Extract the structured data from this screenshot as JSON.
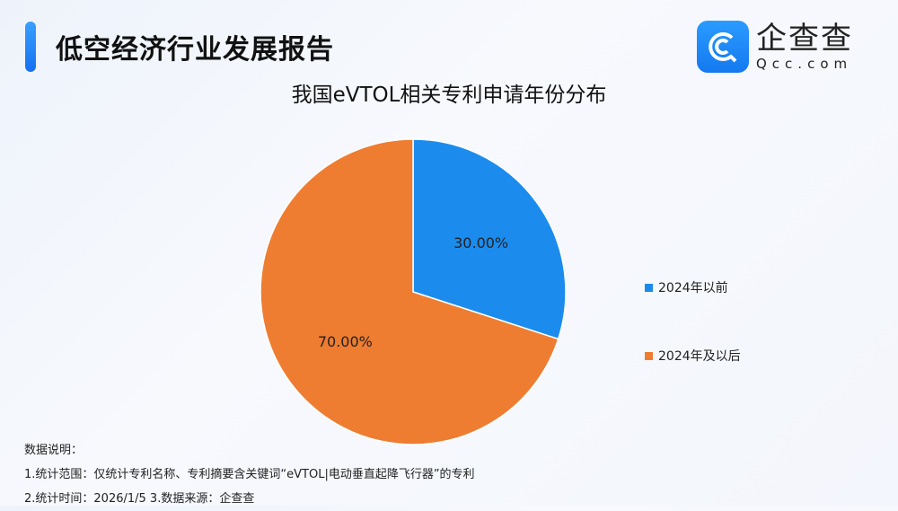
{
  "header": {
    "title": "低空经济行业发展报告",
    "logo_cn": "企查查",
    "logo_en": "Qcc.com"
  },
  "chart_data": {
    "type": "pie",
    "title": "我国eVTOL相关专利申请年份分布",
    "slices": [
      {
        "label": "2024年以前",
        "value": 30.0,
        "display": "30.00%",
        "color": "#1b8cee"
      },
      {
        "label": "2024年及以后",
        "value": 70.0,
        "display": "70.00%",
        "color": "#ee7d31"
      }
    ],
    "start": "top",
    "direction": "clockwise",
    "legend": "right"
  },
  "notes": {
    "heading": "数据说明：",
    "line1": "1.统计范围：仅统计专利名称、专利摘要含关键词“eVTOL|电动垂直起降飞行器”的专利",
    "line2": "2.统计时间：2026/1/5  3.数据来源：企查查"
  }
}
